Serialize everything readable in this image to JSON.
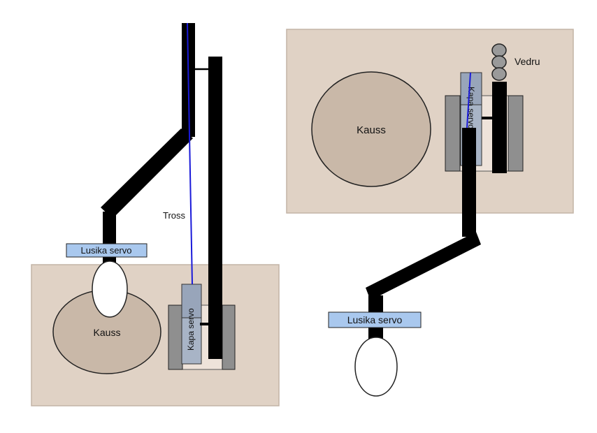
{
  "left_view": {
    "bowl_label": "Kauss",
    "cable_label": "Tross",
    "spoon_servo_label": "Lusika servo",
    "lid_servo_label": "Kapa servo"
  },
  "right_view": {
    "bowl_label": "Kauss",
    "bucket_label": "Vedru",
    "spoon_servo_label": "Lusika servo",
    "lid_servo_label": "Kapa servo"
  },
  "colors": {
    "base": "#e0d2c5",
    "bowl": "#c9b8a8",
    "arm": "#000000",
    "servo": "#a8b4c6",
    "spoon_servo_box": "#a9c8ee",
    "cable": "#1a1ad9",
    "holder": "#8f8f8f"
  }
}
